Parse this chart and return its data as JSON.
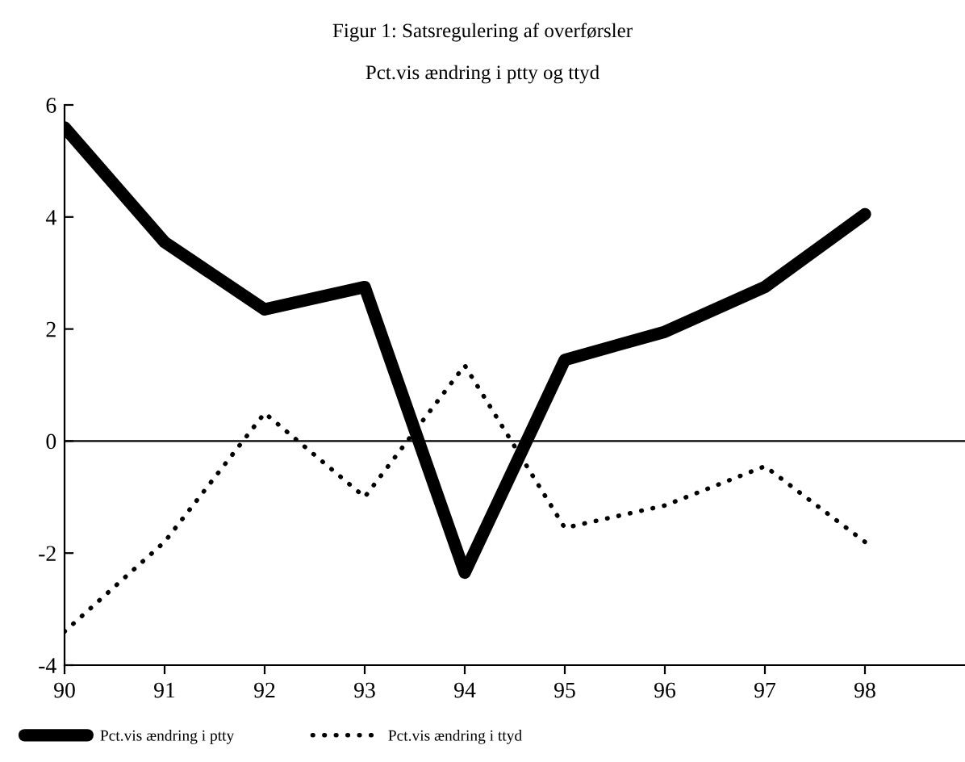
{
  "chart_data": {
    "type": "line",
    "title": "Figur 1: Satsregulering af overførsler",
    "subtitle": "Pct.vis ændring i ptty og ttyd",
    "x": [
      90,
      91,
      92,
      93,
      94,
      95,
      96,
      97,
      98
    ],
    "series": [
      {
        "name": "Pct.vis ændring i ptty",
        "color": "#000000",
        "line_style": "solid",
        "values": [
          5.6,
          3.55,
          2.35,
          2.75,
          -2.35,
          1.45,
          1.95,
          2.75,
          4.05
        ]
      },
      {
        "name": "Pct.vis ændring i ttyd",
        "color": "#000000",
        "line_style": "dotted",
        "values": [
          -3.4,
          -1.8,
          0.5,
          -1.0,
          1.35,
          -1.55,
          -1.15,
          -0.45,
          -1.8
        ]
      }
    ],
    "xlim": [
      90,
      99
    ],
    "xticks": [
      90,
      91,
      92,
      93,
      94,
      95,
      96,
      97,
      98
    ],
    "ylim": [
      -4,
      6
    ],
    "yticks": [
      -4,
      -2,
      0,
      2,
      4,
      6
    ],
    "ref_lines": [
      {
        "axis": "y",
        "value": 0,
        "color": "#000000"
      }
    ],
    "grid": false,
    "legend": "bottom",
    "marker": "none"
  }
}
